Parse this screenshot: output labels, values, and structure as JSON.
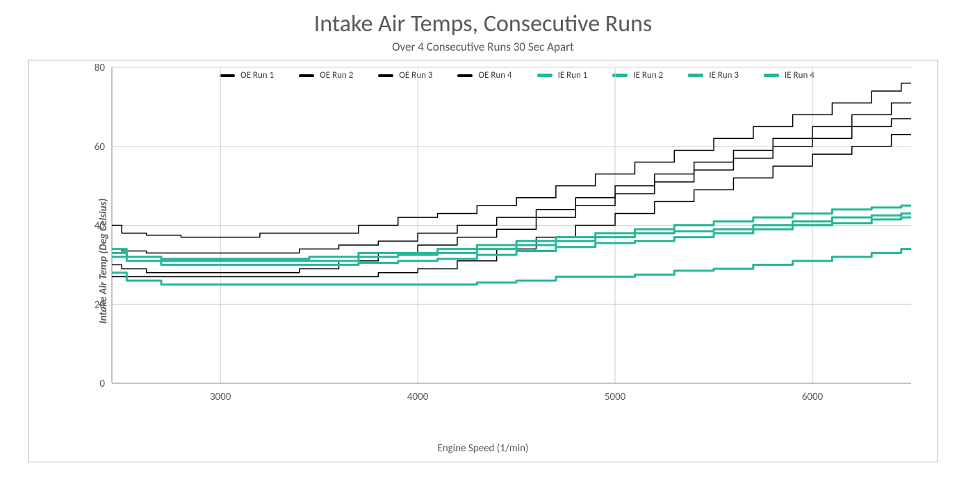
{
  "chart": {
    "type": "line",
    "title": "Intake Air Temps, Consecutive Runs",
    "subtitle": "Over 4 Consecutive Runs 30 Sec Apart",
    "xlabel": "Engine Speed (1/min)",
    "ylabel": "Intake Air Temp (Deg Celsius)",
    "title_fontsize": 34,
    "subtitle_fontsize": 17,
    "label_fontsize": 15,
    "tick_fontsize": 15,
    "title_color": "#595959",
    "label_color": "#595959",
    "background_color": "#ffffff",
    "frame_border_color": "#b4b4b4",
    "grid_color": "#cfcfcf",
    "xlim": [
      2450,
      6500
    ],
    "ylim": [
      0,
      80
    ],
    "xticks": [
      3000,
      4000,
      5000,
      6000
    ],
    "yticks": [
      0,
      20,
      40,
      60,
      80
    ],
    "line_width_oe": 1.5,
    "line_width_ie": 3,
    "colors": {
      "oe": "#000000",
      "ie": "#26b698"
    },
    "legend": [
      {
        "label": "OE Run 1",
        "color": "#000000",
        "width": 4
      },
      {
        "label": "OE Run 2",
        "color": "#000000",
        "width": 4
      },
      {
        "label": "OE Run 3",
        "color": "#000000",
        "width": 4
      },
      {
        "label": "OE Run 4",
        "color": "#000000",
        "width": 4
      },
      {
        "label": "IE Run 1",
        "color": "#26b698",
        "width": 5
      },
      {
        "label": "IE Run 2",
        "color": "#26b698",
        "width": 5
      },
      {
        "label": "IE Run 3",
        "color": "#26b698",
        "width": 5
      },
      {
        "label": "IE Run 4",
        "color": "#26b698",
        "width": 5
      }
    ],
    "series": [
      {
        "name": "OE Run 4",
        "color": "#000000",
        "width": 1.5,
        "points": [
          [
            2450,
            40
          ],
          [
            2550,
            38
          ],
          [
            2700,
            37.5
          ],
          [
            2900,
            37
          ],
          [
            3100,
            37
          ],
          [
            3300,
            38
          ],
          [
            3600,
            38
          ],
          [
            3800,
            40
          ],
          [
            4000,
            42
          ],
          [
            4200,
            43
          ],
          [
            4400,
            45
          ],
          [
            4600,
            47
          ],
          [
            4800,
            50
          ],
          [
            5000,
            53
          ],
          [
            5200,
            56
          ],
          [
            5400,
            59
          ],
          [
            5600,
            62
          ],
          [
            5800,
            65
          ],
          [
            6000,
            68
          ],
          [
            6200,
            71
          ],
          [
            6400,
            74
          ],
          [
            6500,
            76
          ]
        ]
      },
      {
        "name": "OE Run 3",
        "color": "#000000",
        "width": 1.5,
        "points": [
          [
            2450,
            34
          ],
          [
            2550,
            33.5
          ],
          [
            2700,
            33
          ],
          [
            2900,
            33
          ],
          [
            3100,
            33
          ],
          [
            3300,
            33
          ],
          [
            3500,
            34
          ],
          [
            3700,
            35
          ],
          [
            3900,
            36
          ],
          [
            4100,
            38
          ],
          [
            4300,
            40
          ],
          [
            4500,
            42
          ],
          [
            4700,
            44
          ],
          [
            4900,
            47
          ],
          [
            5100,
            50
          ],
          [
            5300,
            53
          ],
          [
            5500,
            56
          ],
          [
            5700,
            59
          ],
          [
            5900,
            62
          ],
          [
            6100,
            65
          ],
          [
            6300,
            68
          ],
          [
            6500,
            71
          ]
        ]
      },
      {
        "name": "OE Run 2",
        "color": "#000000",
        "width": 1.5,
        "points": [
          [
            2450,
            30
          ],
          [
            2550,
            29
          ],
          [
            2700,
            28
          ],
          [
            2900,
            28
          ],
          [
            3100,
            28
          ],
          [
            3300,
            28
          ],
          [
            3500,
            29
          ],
          [
            3700,
            31
          ],
          [
            3900,
            33
          ],
          [
            4100,
            35
          ],
          [
            4300,
            37
          ],
          [
            4500,
            39
          ],
          [
            4700,
            42
          ],
          [
            4900,
            45
          ],
          [
            5100,
            48
          ],
          [
            5300,
            51
          ],
          [
            5500,
            54
          ],
          [
            5700,
            57
          ],
          [
            5900,
            60
          ],
          [
            6100,
            62
          ],
          [
            6300,
            65
          ],
          [
            6500,
            67
          ]
        ]
      },
      {
        "name": "OE Run 1",
        "color": "#000000",
        "width": 1.5,
        "points": [
          [
            2450,
            27
          ],
          [
            2550,
            27
          ],
          [
            2700,
            27
          ],
          [
            2900,
            27
          ],
          [
            3100,
            27
          ],
          [
            3300,
            27
          ],
          [
            3500,
            27
          ],
          [
            3700,
            27
          ],
          [
            3900,
            28
          ],
          [
            4100,
            29
          ],
          [
            4300,
            31
          ],
          [
            4500,
            34
          ],
          [
            4700,
            37
          ],
          [
            4900,
            40
          ],
          [
            5100,
            43
          ],
          [
            5300,
            46
          ],
          [
            5500,
            49
          ],
          [
            5700,
            52
          ],
          [
            5900,
            55
          ],
          [
            6100,
            58
          ],
          [
            6300,
            60
          ],
          [
            6500,
            63
          ]
        ]
      },
      {
        "name": "IE Run 4",
        "color": "#26b698",
        "width": 3,
        "points": [
          [
            2450,
            33
          ],
          [
            2600,
            32
          ],
          [
            2800,
            31.5
          ],
          [
            3000,
            31.5
          ],
          [
            3300,
            31.5
          ],
          [
            3600,
            32
          ],
          [
            3800,
            33
          ],
          [
            4000,
            33
          ],
          [
            4200,
            34
          ],
          [
            4400,
            35
          ],
          [
            4600,
            36
          ],
          [
            4800,
            37
          ],
          [
            5000,
            38
          ],
          [
            5200,
            39
          ],
          [
            5400,
            40
          ],
          [
            5600,
            41
          ],
          [
            5800,
            42
          ],
          [
            6000,
            43
          ],
          [
            6200,
            44
          ],
          [
            6400,
            44.5
          ],
          [
            6500,
            45
          ]
        ]
      },
      {
        "name": "IE Run 3",
        "color": "#26b698",
        "width": 3,
        "points": [
          [
            2450,
            34
          ],
          [
            2600,
            32
          ],
          [
            2800,
            31
          ],
          [
            3000,
            31
          ],
          [
            3300,
            31
          ],
          [
            3600,
            31
          ],
          [
            3800,
            32
          ],
          [
            4000,
            32.5
          ],
          [
            4200,
            33
          ],
          [
            4400,
            34
          ],
          [
            4600,
            35
          ],
          [
            4800,
            36
          ],
          [
            5000,
            37
          ],
          [
            5200,
            38
          ],
          [
            5400,
            38.5
          ],
          [
            5600,
            39
          ],
          [
            5800,
            40
          ],
          [
            6000,
            41
          ],
          [
            6200,
            42
          ],
          [
            6400,
            42.5
          ],
          [
            6500,
            43
          ]
        ]
      },
      {
        "name": "IE Run 2",
        "color": "#26b698",
        "width": 3,
        "points": [
          [
            2450,
            32
          ],
          [
            2600,
            31
          ],
          [
            2800,
            30
          ],
          [
            3000,
            30
          ],
          [
            3300,
            30
          ],
          [
            3600,
            30
          ],
          [
            3800,
            30.5
          ],
          [
            4000,
            31
          ],
          [
            4200,
            31.5
          ],
          [
            4400,
            32.5
          ],
          [
            4600,
            33.5
          ],
          [
            4800,
            34.5
          ],
          [
            5000,
            35.5
          ],
          [
            5200,
            36
          ],
          [
            5400,
            37
          ],
          [
            5600,
            38
          ],
          [
            5800,
            39
          ],
          [
            6000,
            40
          ],
          [
            6200,
            40.5
          ],
          [
            6400,
            41.5
          ],
          [
            6500,
            42
          ]
        ]
      },
      {
        "name": "IE Run 1",
        "color": "#26b698",
        "width": 3,
        "points": [
          [
            2450,
            28
          ],
          [
            2600,
            26
          ],
          [
            2800,
            25
          ],
          [
            3000,
            25
          ],
          [
            3300,
            25
          ],
          [
            3600,
            25
          ],
          [
            3800,
            25
          ],
          [
            4000,
            25
          ],
          [
            4200,
            25
          ],
          [
            4400,
            25.5
          ],
          [
            4600,
            26
          ],
          [
            4800,
            27
          ],
          [
            5000,
            27
          ],
          [
            5200,
            27.5
          ],
          [
            5400,
            28.5
          ],
          [
            5600,
            29
          ],
          [
            5800,
            30
          ],
          [
            6000,
            31
          ],
          [
            6200,
            32
          ],
          [
            6400,
            33
          ],
          [
            6500,
            34
          ]
        ]
      }
    ]
  }
}
